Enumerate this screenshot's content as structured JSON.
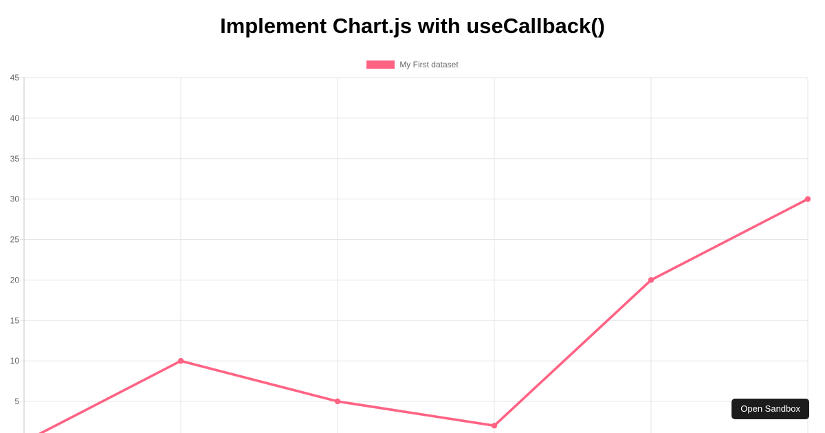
{
  "page": {
    "title": "Implement Chart.js with useCallback()",
    "background": "#ffffff"
  },
  "chart_data": {
    "type": "line",
    "title": "",
    "legend_label": "My First dataset",
    "legend_position": "top",
    "categories": [
      "",
      "",
      "",
      "",
      "",
      ""
    ],
    "x_axis_labels_visible": false,
    "series": [
      {
        "name": "My First dataset",
        "color": "#FF6384",
        "values": [
          0,
          10,
          5,
          2,
          20,
          30
        ]
      }
    ],
    "ylim": [
      0,
      45
    ],
    "y_tick_step": 5,
    "visible_y_ticks": [
      45,
      40,
      35,
      30,
      25,
      20,
      15,
      10,
      5
    ],
    "grid": true,
    "colors": {
      "line": "#FF6384",
      "point": "#FF6384",
      "grid": "#e6e6e6",
      "axis_line": "#c5c5c5",
      "tick_text": "#666666",
      "legend_text": "#666666"
    }
  },
  "open_sandbox_button": {
    "label": "Open Sandbox",
    "bg": "#1c1c1c",
    "text_color": "#ffffff"
  }
}
